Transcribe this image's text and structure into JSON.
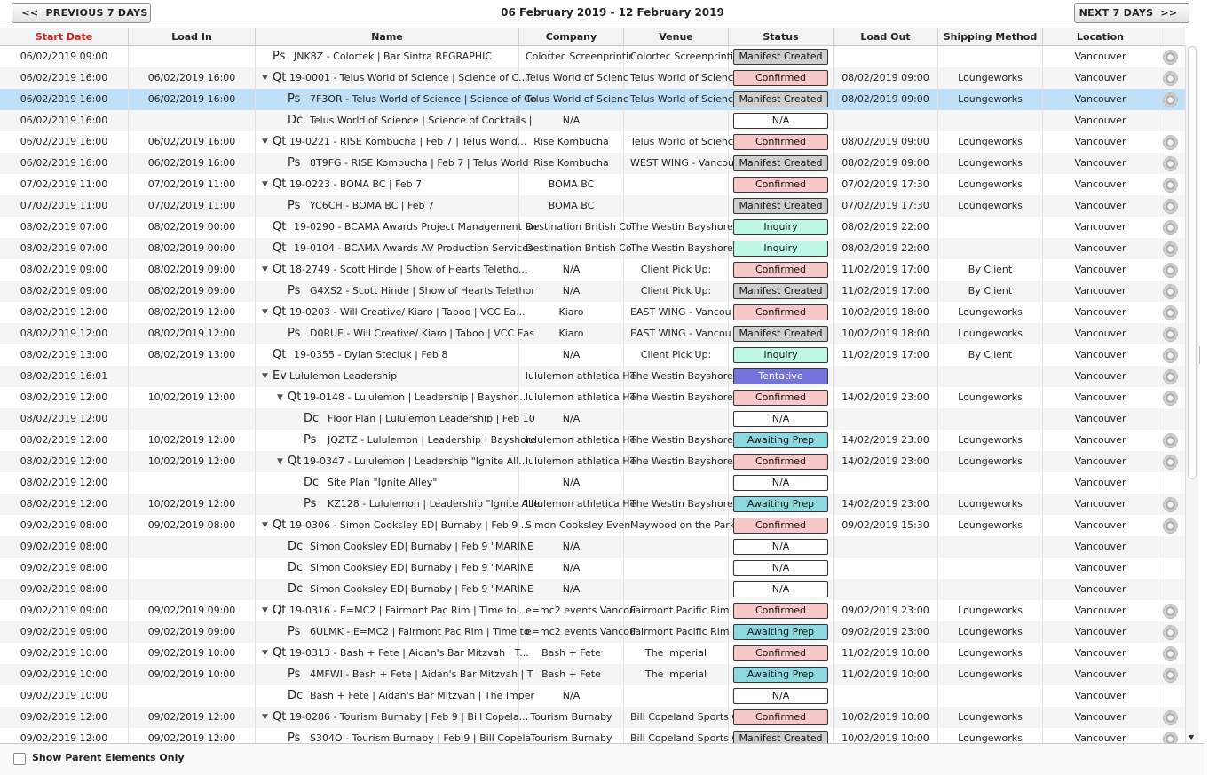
{
  "nav": {
    "prev_arrows": "<<",
    "prev_label": "PREVIOUS 7 DAYS",
    "next_label": "NEXT 7 DAYS",
    "next_arrows": ">>",
    "range_title": "06 February 2019 - 12 February 2019"
  },
  "columns": [
    "Start Date",
    "Load In",
    "Name",
    "Company",
    "Venue",
    "Status",
    "Load Out",
    "Shipping Method",
    "Location"
  ],
  "rows": [
    {
      "start": "06/02/2019 09:00",
      "loadin": "",
      "toggle": "",
      "type": "Ps",
      "name": "JNK8Z - Colortek | Bar Sintra REGRAPHIC",
      "company": "Colortec Screenprintir",
      "venue": "Colortec Screenprintir",
      "status": "Manifest Created",
      "loadout": "",
      "ship": "",
      "loc": "Vancouver",
      "gear": true,
      "level": 1
    },
    {
      "start": "06/02/2019 16:00",
      "loadin": "06/02/2019 16:00",
      "toggle": "▼",
      "type": "Qt",
      "name": "19-0001 - Telus World of Science | Science of C...",
      "company": "Telus World of Scienc",
      "venue": "Telus World of Scienc",
      "status": "Confirmed",
      "loadout": "08/02/2019 09:00",
      "ship": "Loungeworks",
      "loc": "Vancouver",
      "gear": true,
      "level": 0
    },
    {
      "start": "06/02/2019 16:00",
      "loadin": "06/02/2019 16:00",
      "toggle": "",
      "type": "Ps",
      "name": "7F3OR - Telus World of Science | Science of Co",
      "company": "Telus World of Scienc",
      "venue": "Telus World of Scienc",
      "status": "Manifest Created",
      "loadout": "08/02/2019 09:00",
      "ship": "Loungeworks",
      "loc": "Vancouver",
      "gear": true,
      "level": 2,
      "selected": true
    },
    {
      "start": "06/02/2019 16:00",
      "loadin": "",
      "toggle": "",
      "type": "Dc",
      "name": "Telus World of Science | Science of Cocktails |",
      "company": "N/A",
      "venue": "",
      "status": "N/A",
      "loadout": "",
      "ship": "",
      "loc": "Vancouver",
      "gear": false,
      "level": 2
    },
    {
      "start": "06/02/2019 16:00",
      "loadin": "06/02/2019 16:00",
      "toggle": "▼",
      "type": "Qt",
      "name": "19-0221 - RISE Kombucha | Feb 7 | Telus World...",
      "company": "Rise Kombucha",
      "venue": "Telus World of Scienc",
      "status": "Confirmed",
      "loadout": "08/02/2019 09:00",
      "ship": "Loungeworks",
      "loc": "Vancouver",
      "gear": true,
      "level": 0
    },
    {
      "start": "06/02/2019 16:00",
      "loadin": "06/02/2019 16:00",
      "toggle": "",
      "type": "Ps",
      "name": "8T9FG - RISE Kombucha | Feb 7 | Telus World",
      "company": "Rise Kombucha",
      "venue": "WEST WING - Vancou",
      "status": "Manifest Created",
      "loadout": "08/02/2019 09:00",
      "ship": "Loungeworks",
      "loc": "Vancouver",
      "gear": true,
      "level": 2
    },
    {
      "start": "07/02/2019 11:00",
      "loadin": "07/02/2019 11:00",
      "toggle": "▼",
      "type": "Qt",
      "name": "19-0223 - BOMA BC | Feb 7",
      "company": "BOMA BC",
      "venue": "",
      "status": "Confirmed",
      "loadout": "07/02/2019 17:30",
      "ship": "Loungeworks",
      "loc": "Vancouver",
      "gear": true,
      "level": 0
    },
    {
      "start": "07/02/2019 11:00",
      "loadin": "07/02/2019 11:00",
      "toggle": "",
      "type": "Ps",
      "name": "YC6CH - BOMA BC | Feb 7",
      "company": "BOMA BC",
      "venue": "",
      "status": "Manifest Created",
      "loadout": "07/02/2019 17:30",
      "ship": "Loungeworks",
      "loc": "Vancouver",
      "gear": true,
      "level": 2
    },
    {
      "start": "08/02/2019 07:00",
      "loadin": "08/02/2019 00:00",
      "toggle": "",
      "type": "Qt",
      "name": "19-0290 - BCAMA Awards Project Management an",
      "company": "Destination British Co",
      "venue": "The Westin Bayshore",
      "status": "Inquiry",
      "loadout": "08/02/2019 22:00",
      "ship": "",
      "loc": "Vancouver",
      "gear": true,
      "level": 1
    },
    {
      "start": "08/02/2019 07:00",
      "loadin": "08/02/2019 00:00",
      "toggle": "",
      "type": "Qt",
      "name": "19-0104 - BCAMA Awards AV Production Services",
      "company": "Destination British Co",
      "venue": "The Westin Bayshore",
      "status": "Inquiry",
      "loadout": "08/02/2019 22:00",
      "ship": "",
      "loc": "Vancouver",
      "gear": true,
      "level": 1
    },
    {
      "start": "08/02/2019 09:00",
      "loadin": "08/02/2019 09:00",
      "toggle": "▼",
      "type": "Qt",
      "name": "18-2749 - Scott Hinde | Show of Hearts Teletho...",
      "company": "N/A",
      "venue": "Client Pick Up:",
      "status": "Confirmed",
      "loadout": "11/02/2019 17:00",
      "ship": "By Client",
      "loc": "Vancouver",
      "gear": true,
      "level": 0
    },
    {
      "start": "08/02/2019 09:00",
      "loadin": "08/02/2019 09:00",
      "toggle": "",
      "type": "Ps",
      "name": "G4XS2 - Scott Hinde | Show of Hearts Telethor",
      "company": "N/A",
      "venue": "Client Pick Up:",
      "status": "Manifest Created",
      "loadout": "11/02/2019 17:00",
      "ship": "By Client",
      "loc": "Vancouver",
      "gear": true,
      "level": 2
    },
    {
      "start": "08/02/2019 12:00",
      "loadin": "08/02/2019 12:00",
      "toggle": "▼",
      "type": "Qt",
      "name": "19-0203 - Will Creative/ Kiaro | Taboo | VCC Ea...",
      "company": "Kiaro",
      "venue": "EAST WING - Vancou",
      "status": "Confirmed",
      "loadout": "10/02/2019 18:00",
      "ship": "Loungeworks",
      "loc": "Vancouver",
      "gear": true,
      "level": 0
    },
    {
      "start": "08/02/2019 12:00",
      "loadin": "08/02/2019 12:00",
      "toggle": "",
      "type": "Ps",
      "name": "D0RUE - Will Creative/ Kiaro | Taboo | VCC Eas",
      "company": "Kiaro",
      "venue": "EAST WING - Vancou",
      "status": "Manifest Created",
      "loadout": "10/02/2019 18:00",
      "ship": "Loungeworks",
      "loc": "Vancouver",
      "gear": true,
      "level": 2
    },
    {
      "start": "08/02/2019 13:00",
      "loadin": "08/02/2019 13:00",
      "toggle": "",
      "type": "Qt",
      "name": "19-0355 - Dylan Stecluk | Feb 8",
      "company": "N/A",
      "venue": "Client Pick Up:",
      "status": "Inquiry",
      "loadout": "11/02/2019 17:00",
      "ship": "By Client",
      "loc": "Vancouver",
      "gear": true,
      "level": 1
    },
    {
      "start": "08/02/2019 16:01",
      "loadin": "",
      "toggle": "▼",
      "type": "Ev",
      "name": "Lululemon Leadership",
      "company": "lululemon athletica He",
      "venue": "The Westin Bayshore",
      "status": "Tentative",
      "loadout": "",
      "ship": "",
      "loc": "Vancouver",
      "gear": true,
      "level": 0
    },
    {
      "start": "08/02/2019 12:00",
      "loadin": "10/02/2019 12:00",
      "toggle": "▼",
      "type": "Qt",
      "name": "19-0148 - Lululemon | Leadership | Bayshor...",
      "company": "lululemon athletica He",
      "venue": "The Westin Bayshore",
      "status": "Confirmed",
      "loadout": "14/02/2019 23:00",
      "ship": "Loungeworks",
      "loc": "Vancouver",
      "gear": true,
      "level": 3
    },
    {
      "start": "08/02/2019 12:00",
      "loadin": "",
      "toggle": "",
      "type": "Dc",
      "name": "Floor Plan | Lululemon Leadership | Feb 10",
      "company": "N/A",
      "venue": "",
      "status": "N/A",
      "loadout": "",
      "ship": "",
      "loc": "Vancouver",
      "gear": false,
      "level": 4
    },
    {
      "start": "08/02/2019 12:00",
      "loadin": "10/02/2019 12:00",
      "toggle": "",
      "type": "Ps",
      "name": "JQZTZ - Lululemon | Leadership | Bayshore",
      "company": "lululemon athletica He",
      "venue": "The Westin Bayshore",
      "status": "Awaiting Prep",
      "loadout": "14/02/2019 23:00",
      "ship": "Loungeworks",
      "loc": "Vancouver",
      "gear": true,
      "level": 4
    },
    {
      "start": "08/02/2019 12:00",
      "loadin": "10/02/2019 12:00",
      "toggle": "▼",
      "type": "Qt",
      "name": "19-0347 - Lululemon | Leadership \"Ignite All...",
      "company": "lululemon athletica He",
      "venue": "The Westin Bayshore",
      "status": "Confirmed",
      "loadout": "14/02/2019 23:00",
      "ship": "Loungeworks",
      "loc": "Vancouver",
      "gear": true,
      "level": 3
    },
    {
      "start": "08/02/2019 12:00",
      "loadin": "",
      "toggle": "",
      "type": "Dc",
      "name": "Site Plan \"Ignite Alley\"",
      "company": "N/A",
      "venue": "",
      "status": "N/A",
      "loadout": "",
      "ship": "",
      "loc": "Vancouver",
      "gear": false,
      "level": 4
    },
    {
      "start": "08/02/2019 12:00",
      "loadin": "10/02/2019 12:00",
      "toggle": "",
      "type": "Ps",
      "name": "KZ128 - Lululemon | Leadership \"Ignite Alle",
      "company": "lululemon athletica He",
      "venue": "The Westin Bayshore",
      "status": "Awaiting Prep",
      "loadout": "14/02/2019 23:00",
      "ship": "Loungeworks",
      "loc": "Vancouver",
      "gear": true,
      "level": 4
    },
    {
      "start": "09/02/2019 08:00",
      "loadin": "09/02/2019 08:00",
      "toggle": "▼",
      "type": "Qt",
      "name": "19-0306 - Simon Cooksley ED| Burnaby | Feb 9 ...",
      "company": "Simon Cooksley Even",
      "venue": "Maywood on the Park",
      "status": "Confirmed",
      "loadout": "09/02/2019 15:30",
      "ship": "Loungeworks",
      "loc": "Vancouver",
      "gear": true,
      "level": 0
    },
    {
      "start": "09/02/2019 08:00",
      "loadin": "",
      "toggle": "",
      "type": "Dc",
      "name": "Simon Cooksley ED| Burnaby | Feb 9 \"MARINE",
      "company": "N/A",
      "venue": "",
      "status": "N/A",
      "loadout": "",
      "ship": "",
      "loc": "Vancouver",
      "gear": false,
      "level": 2
    },
    {
      "start": "09/02/2019 08:00",
      "loadin": "",
      "toggle": "",
      "type": "Dc",
      "name": "Simon Cooksley ED| Burnaby | Feb 9 \"MARINE",
      "company": "N/A",
      "venue": "",
      "status": "N/A",
      "loadout": "",
      "ship": "",
      "loc": "Vancouver",
      "gear": false,
      "level": 2
    },
    {
      "start": "09/02/2019 08:00",
      "loadin": "",
      "toggle": "",
      "type": "Dc",
      "name": "Simon Cooksley ED| Burnaby | Feb 9 \"MARINE",
      "company": "N/A",
      "venue": "",
      "status": "N/A",
      "loadout": "",
      "ship": "",
      "loc": "Vancouver",
      "gear": false,
      "level": 2
    },
    {
      "start": "09/02/2019 09:00",
      "loadin": "09/02/2019 09:00",
      "toggle": "▼",
      "type": "Qt",
      "name": "19-0316 - E=MC2 | Fairmont Pac Rim | Time to ...",
      "company": "e=mc2 events Vancou",
      "venue": "Fairmont Pacific Rim",
      "status": "Confirmed",
      "loadout": "09/02/2019 23:00",
      "ship": "Loungeworks",
      "loc": "Vancouver",
      "gear": true,
      "level": 0
    },
    {
      "start": "09/02/2019 09:00",
      "loadin": "09/02/2019 09:00",
      "toggle": "",
      "type": "Ps",
      "name": "6ULMK - E=MC2 | Fairmont Pac Rim | Time to",
      "company": "e=mc2 events Vancou",
      "venue": "Fairmont Pacific Rim",
      "status": "Awaiting Prep",
      "loadout": "09/02/2019 23:00",
      "ship": "Loungeworks",
      "loc": "Vancouver",
      "gear": true,
      "level": 2
    },
    {
      "start": "09/02/2019 10:00",
      "loadin": "09/02/2019 10:00",
      "toggle": "▼",
      "type": "Qt",
      "name": "19-0313 - Bash + Fete | Aidan's Bar Mitzvah | T...",
      "company": "Bash + Fete",
      "venue": "The Imperial",
      "status": "Confirmed",
      "loadout": "11/02/2019 10:00",
      "ship": "Loungeworks",
      "loc": "Vancouver",
      "gear": true,
      "level": 0
    },
    {
      "start": "09/02/2019 10:00",
      "loadin": "09/02/2019 10:00",
      "toggle": "",
      "type": "Ps",
      "name": "4MFWI - Bash + Fete | Aidan's Bar Mitzvah | T",
      "company": "Bash + Fete",
      "venue": "The Imperial",
      "status": "Awaiting Prep",
      "loadout": "11/02/2019 10:00",
      "ship": "Loungeworks",
      "loc": "Vancouver",
      "gear": true,
      "level": 2
    },
    {
      "start": "09/02/2019 10:00",
      "loadin": "",
      "toggle": "",
      "type": "Dc",
      "name": "Bash + Fete | Aidan's Bar Mitzvah | The Imper",
      "company": "N/A",
      "venue": "",
      "status": "N/A",
      "loadout": "",
      "ship": "",
      "loc": "Vancouver",
      "gear": false,
      "level": 2
    },
    {
      "start": "09/02/2019 12:00",
      "loadin": "09/02/2019 12:00",
      "toggle": "▼",
      "type": "Qt",
      "name": "19-0286 - Tourism Burnaby | Feb 9 | Bill Copela...",
      "company": "Tourism Burnaby",
      "venue": "Bill Copeland Sports C",
      "status": "Confirmed",
      "loadout": "10/02/2019 10:00",
      "ship": "Loungeworks",
      "loc": "Vancouver",
      "gear": true,
      "level": 0
    },
    {
      "start": "09/02/2019 12:00",
      "loadin": "09/02/2019 12:00",
      "toggle": "",
      "type": "Ps",
      "name": "S304O - Tourism Burnaby | Feb 9 | Bill Copela",
      "company": "Tourism Burnaby",
      "venue": "Bill Copeland Sports C",
      "status": "Manifest Created",
      "loadout": "10/02/2019 10:00",
      "ship": "Loungeworks",
      "loc": "Vancouver",
      "gear": true,
      "level": 2
    }
  ],
  "footer": {
    "checkbox_label": "Show Parent Elements Only",
    "checked": false
  },
  "colors": {
    "sorted_header": "#d81e1e",
    "selected_row": "#bfe0f6",
    "manifest": "#cfcfcf",
    "confirmed": "#f7c8c8",
    "inquiry": "#bff7e6",
    "awaiting": "#8ed9e0",
    "tentative": "#7472dd"
  },
  "icons": {
    "row_action": "gear-icon",
    "expand": "triangle-down-icon"
  }
}
